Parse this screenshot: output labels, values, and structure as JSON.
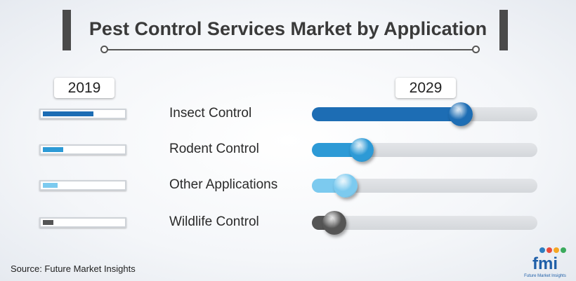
{
  "title": "Pest Control Services Market by Application",
  "source": "Source: Future Market Insights",
  "logo": {
    "wordmark": "fmi",
    "tagline": "Future Market Insights"
  },
  "chart_data": {
    "type": "bar",
    "categories": [
      "Insect Control",
      "Rodent Control",
      "Other Applications",
      "Wildlife Control"
    ],
    "series": [
      {
        "name": "2019",
        "values": [
          0.63,
          0.25,
          0.18,
          0.13
        ]
      },
      {
        "name": "2029",
        "values": [
          0.66,
          0.22,
          0.15,
          0.1
        ]
      }
    ],
    "colors": [
      "#1d6db4",
      "#2d9ad6",
      "#7ccaef",
      "#555555"
    ],
    "legend": "top"
  }
}
